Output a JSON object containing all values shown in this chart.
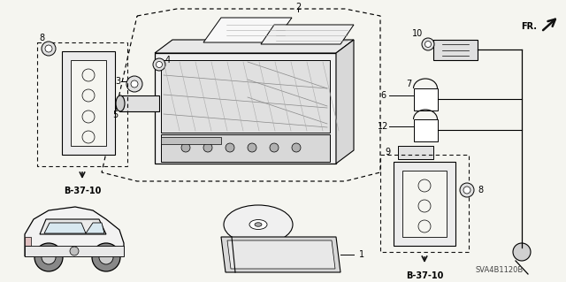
{
  "bg_color": "#f5f5f0",
  "line_color": "#111111",
  "figsize": [
    6.4,
    3.19
  ],
  "dpi": 100,
  "fr_text": "FR.",
  "sva_text": "SVA4B1120B",
  "b3710": "B-37-10",
  "part_labels": [
    "1",
    "2",
    "3",
    "4",
    "5",
    "6",
    "7",
    "8",
    "8",
    "9",
    "10",
    "12"
  ]
}
